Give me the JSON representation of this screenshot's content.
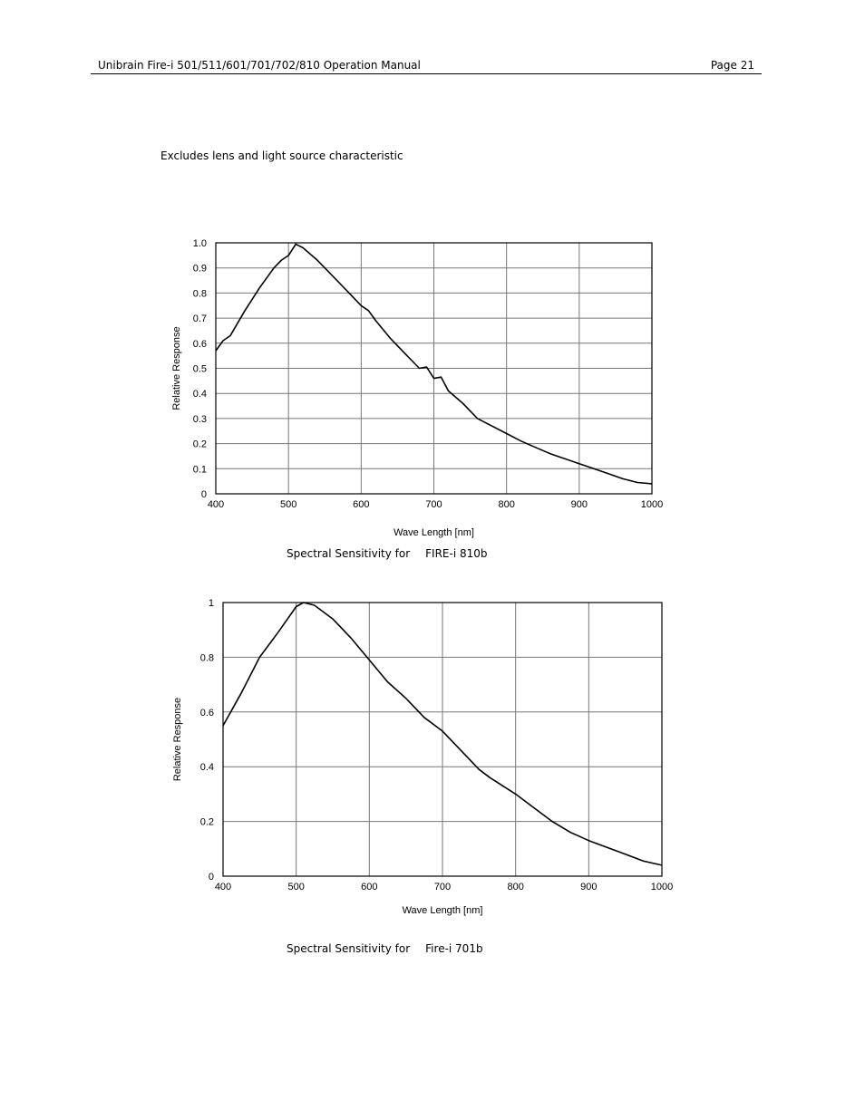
{
  "header": {
    "title": "Unibrain Fire-i 501/511/601/701/702/810 Operation Manual",
    "page": "Page 21"
  },
  "note": "Excludes lens and light source characteristic",
  "captions": [
    {
      "prefix": "Spectral Sensitivity for",
      "model": "FIRE-i 810b"
    },
    {
      "prefix": "Spectral Sensitivity for",
      "model": "Fire-i 701b"
    }
  ],
  "chart_data": [
    {
      "type": "line",
      "title": "",
      "xlabel": "Wave Length [nm]",
      "ylabel": "Relative Response",
      "xlim": [
        400,
        1000
      ],
      "ylim": [
        0,
        1.0
      ],
      "grid": true,
      "x_ticks": [
        "400",
        "500",
        "600",
        "700",
        "800",
        "900",
        "1000"
      ],
      "y_ticks": [
        "0",
        "0.1",
        "0.2",
        "0.3",
        "0.4",
        "0.5",
        "0.6",
        "0.7",
        "0.8",
        "0.9",
        "1.0"
      ],
      "x_tick_values": [
        400,
        500,
        600,
        700,
        800,
        900,
        1000
      ],
      "y_tick_values": [
        0,
        0.1,
        0.2,
        0.3,
        0.4,
        0.5,
        0.6,
        0.7,
        0.8,
        0.9,
        1.0
      ],
      "series": [
        {
          "x": [
            400,
            410,
            420,
            440,
            460,
            470,
            480,
            490,
            500,
            510,
            520,
            540,
            560,
            580,
            600,
            610,
            620,
            640,
            660,
            680,
            690,
            700,
            710,
            720,
            740,
            760,
            780,
            800,
            820,
            840,
            860,
            880,
            900,
            920,
            940,
            960,
            980,
            1000
          ],
          "y": [
            0.57,
            0.61,
            0.63,
            0.73,
            0.82,
            0.86,
            0.9,
            0.93,
            0.95,
            0.995,
            0.98,
            0.93,
            0.87,
            0.81,
            0.75,
            0.73,
            0.69,
            0.62,
            0.56,
            0.5,
            0.505,
            0.46,
            0.465,
            0.41,
            0.36,
            0.3,
            0.27,
            0.24,
            0.21,
            0.185,
            0.16,
            0.14,
            0.12,
            0.1,
            0.08,
            0.06,
            0.045,
            0.04
          ]
        }
      ]
    },
    {
      "type": "line",
      "title": "",
      "xlabel": "Wave Length [nm]",
      "ylabel": "Relative Response",
      "xlim": [
        400,
        1000
      ],
      "ylim": [
        0,
        1
      ],
      "grid": true,
      "x_ticks": [
        "400",
        "500",
        "600",
        "700",
        "800",
        "900",
        "1000"
      ],
      "y_ticks": [
        "0",
        "0.2",
        "0.4",
        "0.6",
        "0.8",
        "1"
      ],
      "x_tick_values": [
        400,
        500,
        600,
        700,
        800,
        900,
        1000
      ],
      "y_tick_values": [
        0,
        0.2,
        0.4,
        0.6,
        0.8,
        1
      ],
      "series": [
        {
          "x": [
            400,
            425,
            450,
            475,
            500,
            510,
            525,
            550,
            575,
            600,
            625,
            650,
            675,
            700,
            725,
            750,
            765,
            800,
            825,
            850,
            875,
            900,
            925,
            950,
            975,
            1000
          ],
          "y": [
            0.55,
            0.67,
            0.8,
            0.89,
            0.985,
            1.0,
            0.99,
            0.94,
            0.87,
            0.79,
            0.71,
            0.65,
            0.58,
            0.53,
            0.46,
            0.39,
            0.36,
            0.3,
            0.25,
            0.2,
            0.16,
            0.13,
            0.105,
            0.08,
            0.055,
            0.04
          ]
        }
      ]
    }
  ]
}
